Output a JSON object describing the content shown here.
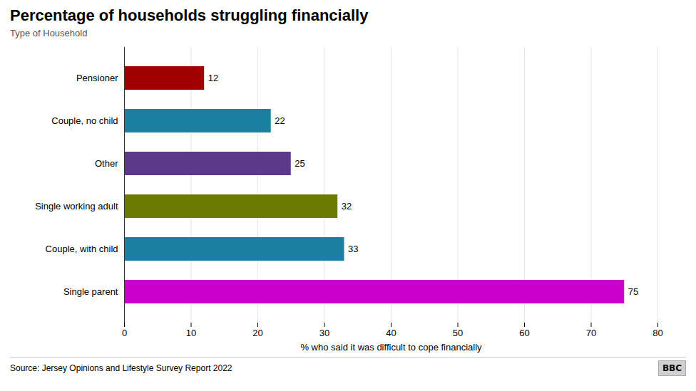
{
  "chart_data": {
    "type": "bar",
    "orientation": "horizontal",
    "title": "Percentage of households struggling financially",
    "subtitle": "Type of Household",
    "xlabel": "% who said it was difficult to cope financially",
    "categories": [
      "Pensioner",
      "Couple, no child",
      "Other",
      "Single working adult",
      "Couple, with child",
      "Single parent"
    ],
    "values": [
      12,
      22,
      25,
      32,
      33,
      75
    ],
    "colors": [
      "#a00000",
      "#1a7fa0",
      "#5c3a8a",
      "#6b7a00",
      "#1a7fa0",
      "#cc00cc"
    ],
    "xlim": [
      0,
      80
    ],
    "xticks": [
      0,
      10,
      20,
      30,
      40,
      50,
      60,
      70,
      80
    ],
    "grid": true,
    "data_labels": true,
    "annotations": [
      "Source: Jersey Opinions and Lifestyle Survey Report 2022",
      "BBC"
    ]
  }
}
